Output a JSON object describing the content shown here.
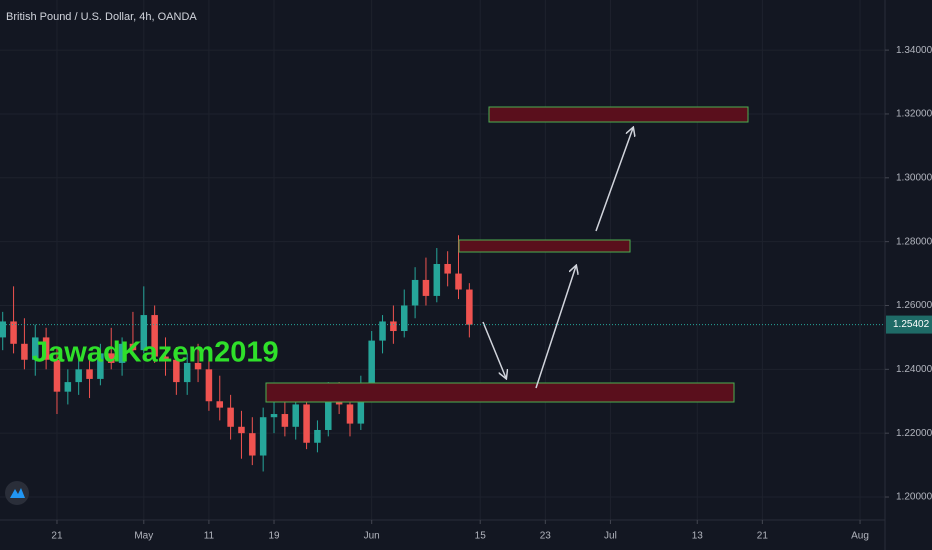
{
  "chart_data": {
    "type": "candlestick",
    "title": "British Pound / U.S. Dollar, 4h, OANDA",
    "watermark": "JawadKazem2019",
    "x": [
      -5,
      -4,
      -3,
      -2,
      -1,
      0,
      1,
      2,
      3,
      4,
      5,
      6,
      7,
      8,
      9,
      10,
      11,
      12,
      13,
      14,
      15,
      16,
      17,
      18,
      19,
      20,
      21,
      22,
      23,
      24,
      25,
      26,
      27,
      28,
      29,
      30,
      31,
      32,
      33,
      34,
      35,
      36,
      37,
      38
    ],
    "open": [
      1.25,
      1.255,
      1.248,
      1.243,
      1.25,
      1.243,
      1.233,
      1.236,
      1.24,
      1.237,
      1.245,
      1.242,
      1.248,
      1.246,
      1.257,
      1.244,
      1.243,
      1.236,
      1.242,
      1.24,
      1.23,
      1.228,
      1.222,
      1.22,
      1.213,
      1.225,
      1.226,
      1.222,
      1.229,
      1.217,
      1.221,
      1.233,
      1.229,
      1.223,
      1.235,
      1.249,
      1.255,
      1.252,
      1.26,
      1.268,
      1.263,
      1.273,
      1.27,
      1.265
    ],
    "high": [
      1.258,
      1.266,
      1.256,
      1.254,
      1.253,
      1.247,
      1.24,
      1.245,
      1.244,
      1.248,
      1.253,
      1.25,
      1.258,
      1.266,
      1.26,
      1.25,
      1.247,
      1.245,
      1.248,
      1.243,
      1.238,
      1.232,
      1.227,
      1.225,
      1.228,
      1.232,
      1.23,
      1.231,
      1.232,
      1.224,
      1.236,
      1.236,
      1.234,
      1.238,
      1.252,
      1.257,
      1.26,
      1.265,
      1.272,
      1.275,
      1.278,
      1.277,
      1.282,
      1.267
    ],
    "low": [
      1.246,
      1.245,
      1.24,
      1.238,
      1.24,
      1.226,
      1.229,
      1.232,
      1.231,
      1.235,
      1.24,
      1.238,
      1.244,
      1.245,
      1.242,
      1.238,
      1.232,
      1.232,
      1.236,
      1.227,
      1.224,
      1.218,
      1.212,
      1.21,
      1.208,
      1.22,
      1.219,
      1.218,
      1.215,
      1.214,
      1.219,
      1.226,
      1.219,
      1.221,
      1.234,
      1.245,
      1.248,
      1.25,
      1.256,
      1.26,
      1.261,
      1.266,
      1.262,
      1.25
    ],
    "close": [
      1.255,
      1.248,
      1.243,
      1.25,
      1.243,
      1.233,
      1.236,
      1.24,
      1.237,
      1.245,
      1.242,
      1.248,
      1.246,
      1.257,
      1.244,
      1.243,
      1.236,
      1.242,
      1.24,
      1.23,
      1.228,
      1.222,
      1.22,
      1.213,
      1.225,
      1.226,
      1.222,
      1.229,
      1.217,
      1.221,
      1.233,
      1.229,
      1.223,
      1.235,
      1.249,
      1.255,
      1.252,
      1.26,
      1.268,
      1.263,
      1.273,
      1.27,
      1.265,
      1.254
    ],
    "up_color": "#26a69a",
    "down_color": "#ef5350",
    "last_price": 1.25402,
    "xlim": [
      -5.25,
      76.3
    ],
    "ylim": [
      1.1928,
      1.3557
    ],
    "xticks": [
      {
        "value": 0,
        "label": "21"
      },
      {
        "value": 8,
        "label": "May"
      },
      {
        "value": 14,
        "label": "11"
      },
      {
        "value": 20,
        "label": "19"
      },
      {
        "value": 29,
        "label": "Jun"
      },
      {
        "value": 39,
        "label": "15"
      },
      {
        "value": 45,
        "label": "23"
      },
      {
        "value": 51,
        "label": "Jul"
      },
      {
        "value": 59,
        "label": "13"
      },
      {
        "value": 65,
        "label": "21"
      },
      {
        "value": 74,
        "label": "Aug"
      }
    ],
    "yticks": [
      {
        "value": 1.2,
        "label": "1.20000"
      },
      {
        "value": 1.22,
        "label": "1.22000"
      },
      {
        "value": 1.24,
        "label": "1.24000"
      },
      {
        "value": 1.26,
        "label": "1.26000"
      },
      {
        "value": 1.28,
        "label": "1.28000"
      },
      {
        "value": 1.3,
        "label": "1.30000"
      },
      {
        "value": 1.32,
        "label": "1.32000"
      },
      {
        "value": 1.34,
        "label": "1.34000"
      }
    ],
    "grid": true
  }
}
